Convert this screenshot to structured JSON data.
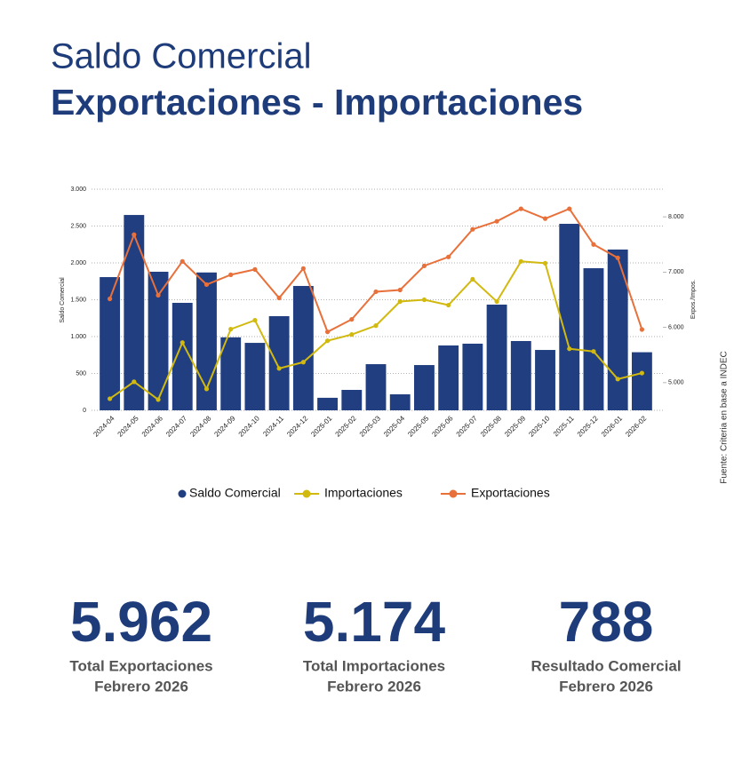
{
  "chart_data": {
    "type": "combo",
    "title": "Saldo Comercial",
    "subtitle": "Exportaciones - Importaciones",
    "y_label": "Saldo Comercial",
    "y2_label": "Expos./Impos.",
    "source": "Fuente: Criteria en base a INDEC",
    "categories": [
      "2024-04",
      "2024-05",
      "2024-06",
      "2024-07",
      "2024-08",
      "2024-09",
      "2024-10",
      "2024-11",
      "2024-12",
      "2025-01",
      "2025-02",
      "2025-03",
      "2025-04",
      "2025-05",
      "2025-06",
      "2025-07",
      "2025-08",
      "2025-09",
      "2025-10",
      "2025-11",
      "2025-12",
      "2026-01",
      "2026-02"
    ],
    "series": [
      {
        "name": "Saldo Comercial",
        "type": "bar",
        "color": "#213f80",
        "values": [
          1807,
          2650,
          1880,
          1458,
          1870,
          990,
          915,
          1277,
          1687,
          170,
          277,
          626,
          217,
          614,
          880,
          904,
          1434,
          940,
          819,
          2530,
          1928,
          2181,
          788
        ]
      },
      {
        "name": "Importaciones",
        "type": "line",
        "axis": "y2",
        "color": "#d2b90f",
        "values": [
          4710,
          5016,
          4694,
          5726,
          4887,
          5968,
          6129,
          5258,
          5371,
          5758,
          5871,
          6032,
          6468,
          6500,
          6403,
          6871,
          6468,
          7194,
          7161,
          5613,
          5565,
          5065,
          5174
        ]
      },
      {
        "name": "Exportaciones",
        "type": "line",
        "axis": "y2",
        "color": "#e8703a",
        "values": [
          6516,
          7677,
          6581,
          7194,
          6774,
          6952,
          7048,
          6532,
          7065,
          5919,
          6145,
          6645,
          6677,
          7113,
          7274,
          7774,
          7919,
          8145,
          7968,
          8145,
          7500,
          7258,
          5962
        ]
      }
    ],
    "ylim": [
      0,
      3000
    ],
    "yticks": [
      0,
      {
        "value": 500,
        "label": "500"
      },
      {
        "value": 1000,
        "label": "1.000"
      },
      {
        "value": 1500,
        "label": "1.500"
      },
      {
        "value": 2000,
        "label": "2.000"
      },
      {
        "value": 2500,
        "label": "2.500"
      },
      {
        "value": 3000,
        "label": "3.000"
      }
    ],
    "y2lim": [
      4500,
      8500
    ],
    "y2ticks": [
      {
        "value": 5000,
        "label": "5.000"
      },
      {
        "value": 6000,
        "label": "6.000"
      },
      {
        "value": 7000,
        "label": "7.000"
      },
      {
        "value": 8000,
        "label": "8.000"
      }
    ],
    "grid": true,
    "legend": "bottom"
  },
  "summary": [
    {
      "value": "5.962",
      "label": "Total Exportaciones",
      "period": "Febrero 2026"
    },
    {
      "value": "5.174",
      "label": "Total Importaciones",
      "period": "Febrero 2026"
    },
    {
      "value": "788",
      "label": "Resultado Comercial",
      "period": "Febrero 2026"
    }
  ]
}
